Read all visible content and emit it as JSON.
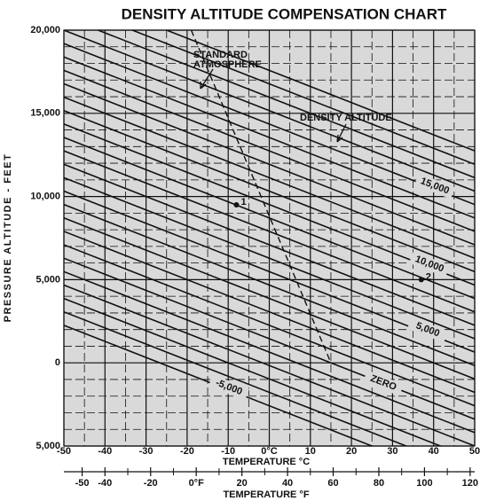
{
  "chart_data": {
    "type": "line",
    "title": "DENSITY ALTITUDE COMPENSATION CHART",
    "ylabel": "PRESSURE ALTITUDE - FEET",
    "xlabel": "TEMPERATURE °C",
    "x2label": "TEMPERATURE °F",
    "xlim": [
      -50,
      50
    ],
    "ylim": [
      -5000,
      20000
    ],
    "x2lim": [
      -58,
      122
    ],
    "yticks": [
      {
        "value": 20000,
        "label": "20,000"
      },
      {
        "value": 15000,
        "label": "15,000"
      },
      {
        "value": 10000,
        "label": "10,000"
      },
      {
        "value": 5000,
        "label": "5,000"
      },
      0,
      {
        "value": -5000,
        "label": "5,000"
      }
    ],
    "xticks": [
      -50,
      -40,
      -30,
      -20,
      -10,
      {
        "value": 0,
        "label": "0°C"
      },
      10,
      20,
      30,
      40,
      50
    ],
    "x2ticks": [
      -50,
      -40,
      -20,
      {
        "value": 0,
        "label": "0°F"
      },
      20,
      40,
      60,
      80,
      100,
      120
    ],
    "x2minor": [
      -30,
      -10,
      10,
      30,
      50,
      70,
      90,
      110
    ],
    "xminor": [
      -45,
      -35,
      -25,
      -15,
      -5,
      5,
      15,
      25,
      35,
      45
    ],
    "yminor": [
      -4000,
      -3000,
      -2000,
      -1000,
      1000,
      2000,
      3000,
      4000,
      6000,
      7000,
      8000,
      9000,
      11000,
      12000,
      13000,
      14000,
      16000,
      17000,
      18000,
      19000
    ],
    "grid": true,
    "background": "#d9d9d9",
    "color": "#111111",
    "lines": [
      {
        "x": [
          -50,
          50
        ],
        "y": [
          2258,
          -7419
        ]
      },
      {
        "x": [
          -50,
          50
        ],
        "y": [
          3065,
          -6613
        ]
      },
      {
        "x": [
          -50,
          50
        ],
        "y": [
          3871,
          -5806
        ]
      },
      {
        "x": [
          -50,
          50
        ],
        "y": [
          4677,
          -5000
        ]
      },
      {
        "x": [
          -50,
          50
        ],
        "y": [
          5484,
          -4194
        ]
      },
      {
        "x": [
          -50,
          50
        ],
        "y": [
          6290,
          -3387
        ]
      },
      {
        "x": [
          -50,
          50
        ],
        "y": [
          7097,
          -2581
        ]
      },
      {
        "x": [
          -50,
          50
        ],
        "y": [
          7903,
          -1774
        ]
      },
      {
        "x": [
          -50,
          50
        ],
        "y": [
          8710,
          -968
        ]
      },
      {
        "x": [
          -50,
          50
        ],
        "y": [
          9516,
          -161
        ]
      },
      {
        "x": [
          -50,
          50
        ],
        "y": [
          10323,
          645
        ]
      },
      {
        "x": [
          -50,
          50
        ],
        "y": [
          11129,
          1452
        ]
      },
      {
        "x": [
          -50,
          50
        ],
        "y": [
          11935,
          2258
        ]
      },
      {
        "x": [
          -50,
          50
        ],
        "y": [
          12742,
          3065
        ]
      },
      {
        "x": [
          -50,
          50
        ],
        "y": [
          13548,
          3871
        ]
      },
      {
        "x": [
          -50,
          50
        ],
        "y": [
          14355,
          4677
        ]
      },
      {
        "x": [
          -50,
          50
        ],
        "y": [
          15161,
          5484
        ]
      },
      {
        "x": [
          -50,
          50
        ],
        "y": [
          15968,
          6290
        ]
      },
      {
        "x": [
          -50,
          50
        ],
        "y": [
          16774,
          7097
        ]
      },
      {
        "x": [
          -50,
          50
        ],
        "y": [
          17581,
          7903
        ]
      },
      {
        "x": [
          -50,
          50
        ],
        "y": [
          18387,
          8710
        ]
      },
      {
        "x": [
          -50,
          50
        ],
        "y": [
          19194,
          9516
        ]
      },
      {
        "x": [
          -50,
          50
        ],
        "y": [
          20000,
          10323
        ]
      },
      {
        "x": [
          -50,
          50
        ],
        "y": [
          20806,
          11129
        ]
      },
      {
        "x": [
          -50,
          50
        ],
        "y": [
          21613,
          11935
        ]
      },
      {
        "x": [
          -50,
          50
        ],
        "y": [
          22419,
          12742
        ]
      }
    ],
    "standard_atmosphere": {
      "x": [
        -19,
        15
      ],
      "y": [
        20000,
        0
      ]
    },
    "points": [
      {
        "label": "1",
        "x": -8,
        "y": 9500
      },
      {
        "label": "2",
        "x": 37,
        "y": 5000
      }
    ],
    "annotations": {
      "standard_atmosphere": [
        "STANDARD",
        "ATMOSPHERE"
      ],
      "density_altitude": "DENSITY ALTITUDE",
      "line_labels": [
        "15,000",
        "10,000",
        "5,000",
        "ZERO",
        "-5,000"
      ]
    }
  }
}
